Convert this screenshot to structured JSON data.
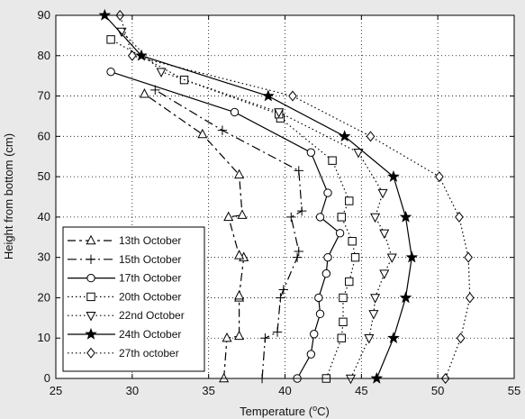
{
  "chart_data": {
    "type": "line",
    "xlabel": "Temperature (",
    "xlabel_sup": "o",
    "xlabel_unit": "C)",
    "ylabel": "Height from bottom (cm)",
    "xlim": [
      25,
      55
    ],
    "ylim": [
      0,
      90
    ],
    "xticks": [
      "25",
      "30",
      "35",
      "40",
      "45",
      "50",
      "55"
    ],
    "yticks": [
      "0",
      "10",
      "20",
      "30",
      "40",
      "50",
      "60",
      "70",
      "80",
      "90"
    ],
    "grid": true,
    "legend_position": "bottom-left",
    "series": [
      {
        "name": "13th October",
        "marker": "triangle-up",
        "dash": "9,4,3,4",
        "points": [
          [
            36,
            0
          ],
          [
            36.2,
            10
          ],
          [
            37,
            10.5
          ],
          [
            37,
            20
          ],
          [
            37,
            20.5
          ],
          [
            37.3,
            30
          ],
          [
            37,
            30.5
          ],
          [
            36.3,
            40
          ],
          [
            37.2,
            40.5
          ],
          [
            37,
            50.5
          ],
          [
            34.6,
            60.5
          ],
          [
            30.8,
            70.5
          ]
        ]
      },
      {
        "name": "15th October",
        "marker": "plus",
        "dash": "10,4,2,4",
        "points": [
          [
            38.5,
            0
          ],
          [
            38.7,
            10
          ],
          [
            39.5,
            11.5
          ],
          [
            39.7,
            20
          ],
          [
            39.9,
            22
          ],
          [
            40.8,
            30
          ],
          [
            40.9,
            31.5
          ],
          [
            40.4,
            40
          ],
          [
            41.1,
            41.5
          ],
          [
            40.9,
            51.5
          ],
          [
            35.9,
            61.5
          ],
          [
            31.5,
            71.5
          ]
        ]
      },
      {
        "name": "17th October",
        "marker": "circle",
        "dash": "",
        "points": [
          [
            40.8,
            0
          ],
          [
            41.7,
            6
          ],
          [
            41.9,
            11
          ],
          [
            42.3,
            16
          ],
          [
            42.2,
            20
          ],
          [
            42.7,
            26
          ],
          [
            42.8,
            30
          ],
          [
            43.6,
            36
          ],
          [
            42.3,
            40
          ],
          [
            42.8,
            46
          ],
          [
            41.7,
            56
          ],
          [
            36.7,
            66
          ],
          [
            28.6,
            76
          ]
        ]
      },
      {
        "name": "20th October",
        "marker": "square",
        "dash": "1.5,3",
        "points": [
          [
            42.7,
            0
          ],
          [
            43.7,
            10
          ],
          [
            43.8,
            14
          ],
          [
            43.8,
            20
          ],
          [
            44.2,
            24
          ],
          [
            44.6,
            30
          ],
          [
            44.4,
            34
          ],
          [
            43.7,
            40
          ],
          [
            44.2,
            44
          ],
          [
            43.1,
            54
          ],
          [
            39.7,
            64.5
          ],
          [
            39.6,
            65.5
          ],
          [
            33.4,
            74
          ],
          [
            28.6,
            84
          ]
        ]
      },
      {
        "name": "22nd October",
        "marker": "triangle-down",
        "dash": "1.5,3",
        "points": [
          [
            44.3,
            0
          ],
          [
            45.5,
            10
          ],
          [
            45.8,
            16
          ],
          [
            45.9,
            20
          ],
          [
            46.5,
            26
          ],
          [
            47,
            30
          ],
          [
            46.5,
            36
          ],
          [
            45.9,
            40
          ],
          [
            46.4,
            46
          ],
          [
            44.8,
            56
          ],
          [
            39.6,
            66
          ],
          [
            31.9,
            76
          ],
          [
            29.3,
            86
          ]
        ]
      },
      {
        "name": "24th October",
        "marker": "star",
        "dash": "",
        "points": [
          [
            46,
            0
          ],
          [
            47.1,
            10
          ],
          [
            47.9,
            20
          ],
          [
            48.3,
            30
          ],
          [
            47.9,
            40
          ],
          [
            47.1,
            50
          ],
          [
            43.9,
            60
          ],
          [
            38.9,
            70
          ],
          [
            30.6,
            80
          ],
          [
            28.2,
            90
          ]
        ]
      },
      {
        "name": "27th october",
        "marker": "diamond",
        "dash": "1.5,3",
        "points": [
          [
            50.5,
            0
          ],
          [
            51.5,
            10
          ],
          [
            52.1,
            20
          ],
          [
            52,
            30
          ],
          [
            51.4,
            40
          ],
          [
            50.1,
            50
          ],
          [
            45.6,
            60
          ],
          [
            40.5,
            70
          ],
          [
            30,
            80
          ],
          [
            29.2,
            90
          ]
        ]
      }
    ]
  }
}
